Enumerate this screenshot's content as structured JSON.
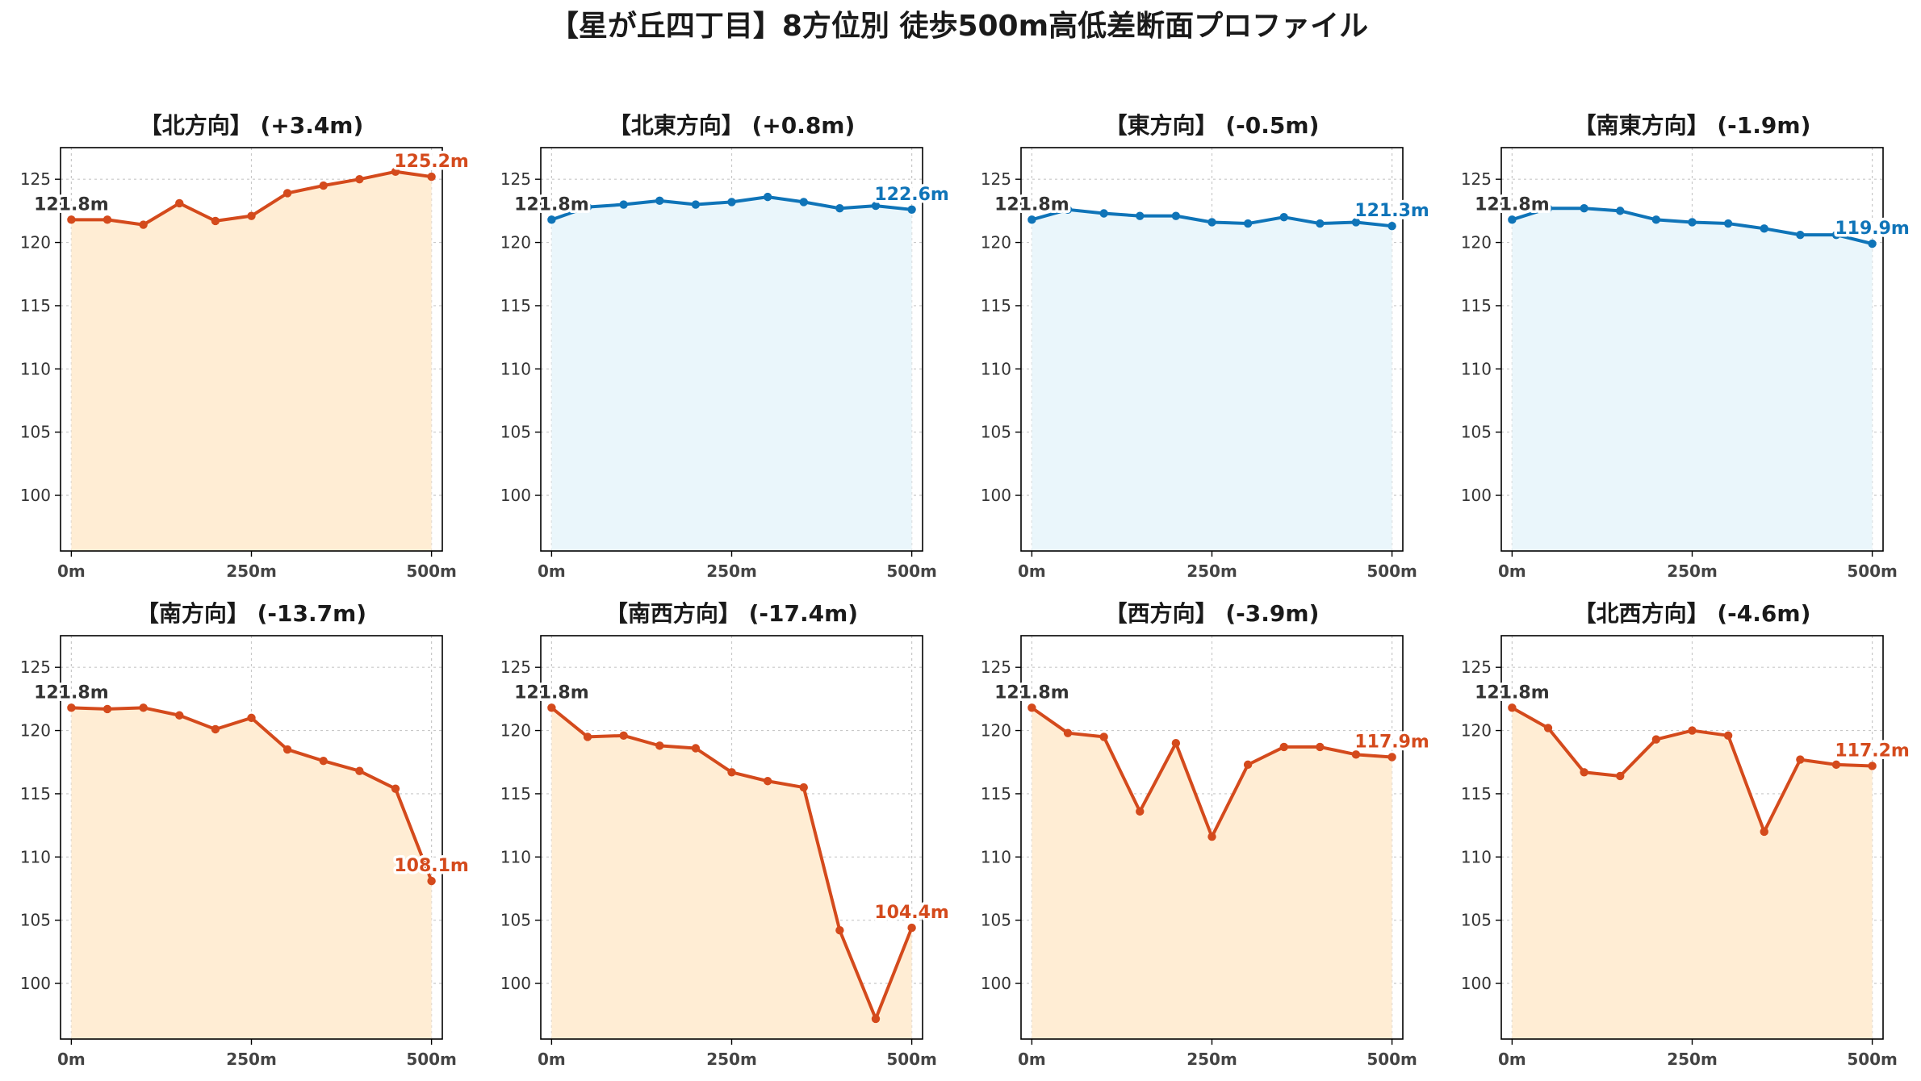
{
  "suptitle": "【星が丘四丁目】8方位別 徒歩500m高低差断面プロファイル",
  "colors": {
    "up_line": "#d44a1c",
    "up_fill": "#ffedd4",
    "down_line": "#0f74b8",
    "down_fill": "#eaf6fb",
    "start_label": "#333333"
  },
  "chart_data": [
    {
      "type": "area",
      "title": "【北方向】 (+3.4m)",
      "trend": "up",
      "x": [
        0,
        50,
        100,
        150,
        200,
        250,
        300,
        350,
        400,
        450,
        500
      ],
      "values": [
        121.8,
        121.8,
        121.4,
        123.1,
        121.7,
        122.1,
        123.9,
        124.5,
        125.0,
        125.6,
        125.2
      ],
      "start_label": "121.8m",
      "end_label": "125.2m",
      "x_ticks": [
        0,
        250,
        500
      ],
      "x_tick_labels": [
        "0m",
        "250m",
        "500m"
      ],
      "y_ticks": [
        100,
        105,
        110,
        115,
        120,
        125
      ],
      "y_tick_labels": [
        "100",
        "105",
        "110",
        "115",
        "120",
        "125"
      ],
      "xlim": [
        -15,
        515
      ],
      "ylim": [
        95.6,
        127.5
      ],
      "grid": true
    },
    {
      "type": "area",
      "title": "【北東方向】 (+0.8m)",
      "trend": "down",
      "x": [
        0,
        50,
        100,
        150,
        200,
        250,
        300,
        350,
        400,
        450,
        500
      ],
      "values": [
        121.8,
        122.8,
        123.0,
        123.3,
        123.0,
        123.2,
        123.6,
        123.2,
        122.7,
        122.9,
        122.6
      ],
      "start_label": "121.8m",
      "end_label": "122.6m",
      "x_ticks": [
        0,
        250,
        500
      ],
      "x_tick_labels": [
        "0m",
        "250m",
        "500m"
      ],
      "y_ticks": [
        100,
        105,
        110,
        115,
        120,
        125
      ],
      "y_tick_labels": [
        "100",
        "105",
        "110",
        "115",
        "120",
        "125"
      ],
      "xlim": [
        -15,
        515
      ],
      "ylim": [
        95.6,
        127.5
      ],
      "grid": true
    },
    {
      "type": "area",
      "title": "【東方向】 (-0.5m)",
      "trend": "down",
      "x": [
        0,
        50,
        100,
        150,
        200,
        250,
        300,
        350,
        400,
        450,
        500
      ],
      "values": [
        121.8,
        122.6,
        122.3,
        122.1,
        122.1,
        121.6,
        121.5,
        122.0,
        121.5,
        121.6,
        121.3
      ],
      "start_label": "121.8m",
      "end_label": "121.3m",
      "x_ticks": [
        0,
        250,
        500
      ],
      "x_tick_labels": [
        "0m",
        "250m",
        "500m"
      ],
      "y_ticks": [
        100,
        105,
        110,
        115,
        120,
        125
      ],
      "y_tick_labels": [
        "100",
        "105",
        "110",
        "115",
        "120",
        "125"
      ],
      "xlim": [
        -15,
        515
      ],
      "ylim": [
        95.6,
        127.5
      ],
      "grid": true
    },
    {
      "type": "area",
      "title": "【南東方向】 (-1.9m)",
      "trend": "down",
      "x": [
        0,
        50,
        100,
        150,
        200,
        250,
        300,
        350,
        400,
        450,
        500
      ],
      "values": [
        121.8,
        122.7,
        122.7,
        122.5,
        121.8,
        121.6,
        121.5,
        121.1,
        120.6,
        120.6,
        119.9
      ],
      "start_label": "121.8m",
      "end_label": "119.9m",
      "x_ticks": [
        0,
        250,
        500
      ],
      "x_tick_labels": [
        "0m",
        "250m",
        "500m"
      ],
      "y_ticks": [
        100,
        105,
        110,
        115,
        120,
        125
      ],
      "y_tick_labels": [
        "100",
        "105",
        "110",
        "115",
        "120",
        "125"
      ],
      "xlim": [
        -15,
        515
      ],
      "ylim": [
        95.6,
        127.5
      ],
      "grid": true
    },
    {
      "type": "area",
      "title": "【南方向】 (-13.7m)",
      "trend": "up",
      "x": [
        0,
        50,
        100,
        150,
        200,
        250,
        300,
        350,
        400,
        450,
        500
      ],
      "values": [
        121.8,
        121.7,
        121.8,
        121.2,
        120.1,
        121.0,
        118.5,
        117.6,
        116.8,
        115.4,
        108.1
      ],
      "start_label": "121.8m",
      "end_label": "108.1m",
      "x_ticks": [
        0,
        250,
        500
      ],
      "x_tick_labels": [
        "0m",
        "250m",
        "500m"
      ],
      "y_ticks": [
        100,
        105,
        110,
        115,
        120,
        125
      ],
      "y_tick_labels": [
        "100",
        "105",
        "110",
        "115",
        "120",
        "125"
      ],
      "xlim": [
        -15,
        515
      ],
      "ylim": [
        95.6,
        127.5
      ],
      "grid": true
    },
    {
      "type": "area",
      "title": "【南西方向】 (-17.4m)",
      "trend": "up",
      "x": [
        0,
        50,
        100,
        150,
        200,
        250,
        300,
        350,
        400,
        450,
        500
      ],
      "values": [
        121.8,
        119.5,
        119.6,
        118.8,
        118.6,
        116.7,
        116.0,
        115.5,
        104.2,
        97.2,
        104.4
      ],
      "start_label": "121.8m",
      "end_label": "104.4m",
      "x_ticks": [
        0,
        250,
        500
      ],
      "x_tick_labels": [
        "0m",
        "250m",
        "500m"
      ],
      "y_ticks": [
        100,
        105,
        110,
        115,
        120,
        125
      ],
      "y_tick_labels": [
        "100",
        "105",
        "110",
        "115",
        "120",
        "125"
      ],
      "xlim": [
        -15,
        515
      ],
      "ylim": [
        95.6,
        127.5
      ],
      "grid": true
    },
    {
      "type": "area",
      "title": "【西方向】 (-3.9m)",
      "trend": "up",
      "x": [
        0,
        50,
        100,
        150,
        200,
        250,
        300,
        350,
        400,
        450,
        500
      ],
      "values": [
        121.8,
        119.8,
        119.5,
        113.6,
        119.0,
        111.6,
        117.3,
        118.7,
        118.7,
        118.1,
        117.9
      ],
      "start_label": "121.8m",
      "end_label": "117.9m",
      "x_ticks": [
        0,
        250,
        500
      ],
      "x_tick_labels": [
        "0m",
        "250m",
        "500m"
      ],
      "y_ticks": [
        100,
        105,
        110,
        115,
        120,
        125
      ],
      "y_tick_labels": [
        "100",
        "105",
        "110",
        "115",
        "120",
        "125"
      ],
      "xlim": [
        -15,
        515
      ],
      "ylim": [
        95.6,
        127.5
      ],
      "grid": true
    },
    {
      "type": "area",
      "title": "【北西方向】 (-4.6m)",
      "trend": "up",
      "x": [
        0,
        50,
        100,
        150,
        200,
        250,
        300,
        350,
        400,
        450,
        500
      ],
      "values": [
        121.8,
        120.2,
        116.7,
        116.4,
        119.3,
        120.0,
        119.6,
        112.0,
        117.7,
        117.3,
        117.2
      ],
      "start_label": "121.8m",
      "end_label": "117.2m",
      "x_ticks": [
        0,
        250,
        500
      ],
      "x_tick_labels": [
        "0m",
        "250m",
        "500m"
      ],
      "y_ticks": [
        100,
        105,
        110,
        115,
        120,
        125
      ],
      "y_tick_labels": [
        "100",
        "105",
        "110",
        "115",
        "120",
        "125"
      ],
      "xlim": [
        -15,
        515
      ],
      "ylim": [
        95.6,
        127.5
      ],
      "grid": true
    }
  ]
}
